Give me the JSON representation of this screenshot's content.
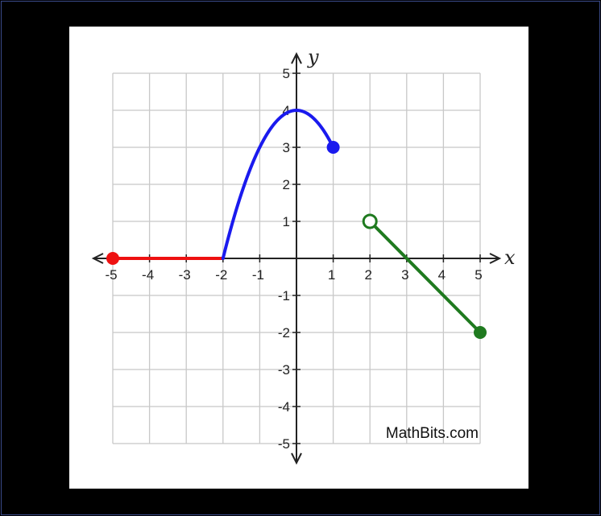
{
  "chart_data": {
    "type": "line",
    "xlabel": "x",
    "ylabel": "y",
    "xlim": [
      -5,
      5
    ],
    "ylim": [
      -5,
      5
    ],
    "grid": true,
    "x_ticks": [
      -5,
      -4,
      -3,
      -2,
      -1,
      1,
      2,
      3,
      4,
      5
    ],
    "y_ticks": [
      5,
      4,
      3,
      2,
      1,
      -1,
      -2,
      -3,
      -4,
      -5
    ],
    "x_tick_labels": [
      "-5",
      "-4",
      "-3",
      "-2",
      "-1",
      "1",
      "2",
      "3",
      "4",
      "5"
    ],
    "y_tick_labels": [
      "5",
      "4",
      "3",
      "2",
      "1",
      "-1",
      "-2",
      "-3",
      "-4",
      "-5"
    ],
    "series": [
      {
        "color": "#ee1111",
        "kind": "segment",
        "points": [
          [
            -5,
            0
          ],
          [
            -2,
            0
          ]
        ],
        "start_marker": "closed",
        "end_marker": "none"
      },
      {
        "color": "#1a1aee",
        "kind": "parabola",
        "points": [
          [
            -2,
            0
          ],
          [
            -1.5,
            1.75
          ],
          [
            -1,
            3.0
          ],
          [
            -0.5,
            3.75
          ],
          [
            0,
            4.0
          ],
          [
            0.5,
            3.75
          ],
          [
            1,
            3.0
          ]
        ],
        "start_marker": "none",
        "end_marker": "closed"
      },
      {
        "color": "#1f7a1f",
        "kind": "segment",
        "points": [
          [
            2,
            1
          ],
          [
            5,
            -2
          ]
        ],
        "start_marker": "open",
        "end_marker": "closed"
      }
    ],
    "annotations": [
      "MathBits.com"
    ]
  },
  "watermark": "MathBits.com"
}
